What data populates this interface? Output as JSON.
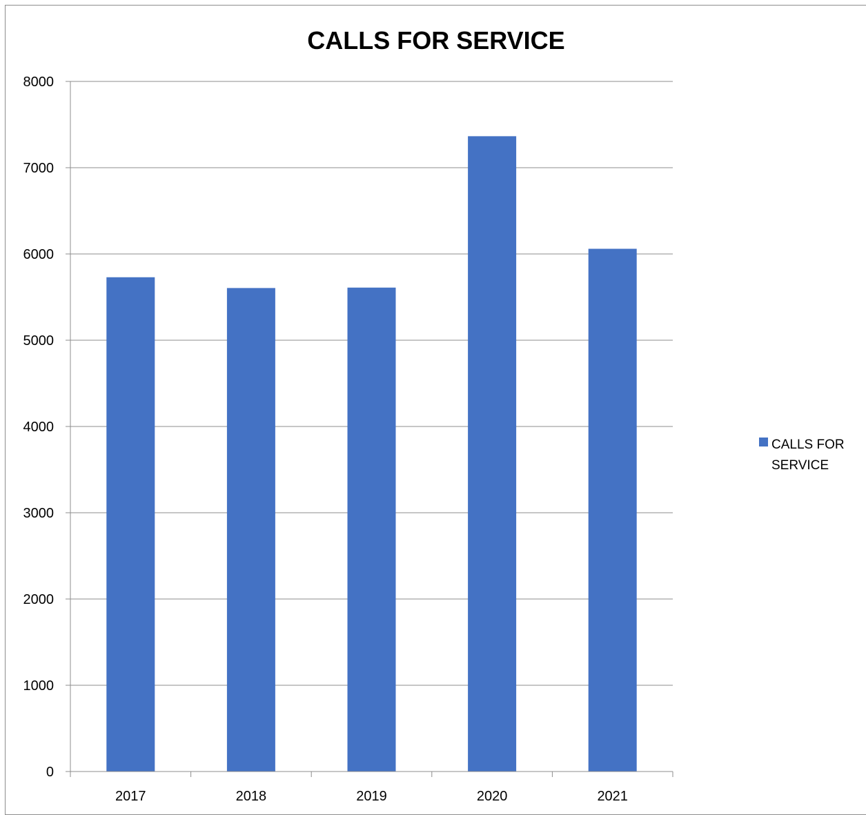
{
  "chart_data": {
    "type": "bar",
    "title": "CALLS FOR SERVICE",
    "xlabel": "",
    "ylabel": "",
    "categories": [
      "2017",
      "2018",
      "2019",
      "2020",
      "2021"
    ],
    "series": [
      {
        "name": "CALLS FOR SERVICE",
        "values": [
          5730,
          5605,
          5610,
          7365,
          6060
        ],
        "color": "#4472C4"
      }
    ],
    "ylim": [
      0,
      8000
    ],
    "yticks": [
      "0",
      "1000",
      "2000",
      "3000",
      "4000",
      "5000",
      "6000",
      "7000",
      "8000"
    ],
    "grid": true,
    "legend": {
      "position": "right",
      "label_lines": [
        "CALLS FOR",
        "SERVICE"
      ]
    }
  },
  "colors": {
    "bar": "#4472C4",
    "gridline": "#8c8c8c",
    "axis": "#8c8c8c",
    "text": "#000000"
  }
}
